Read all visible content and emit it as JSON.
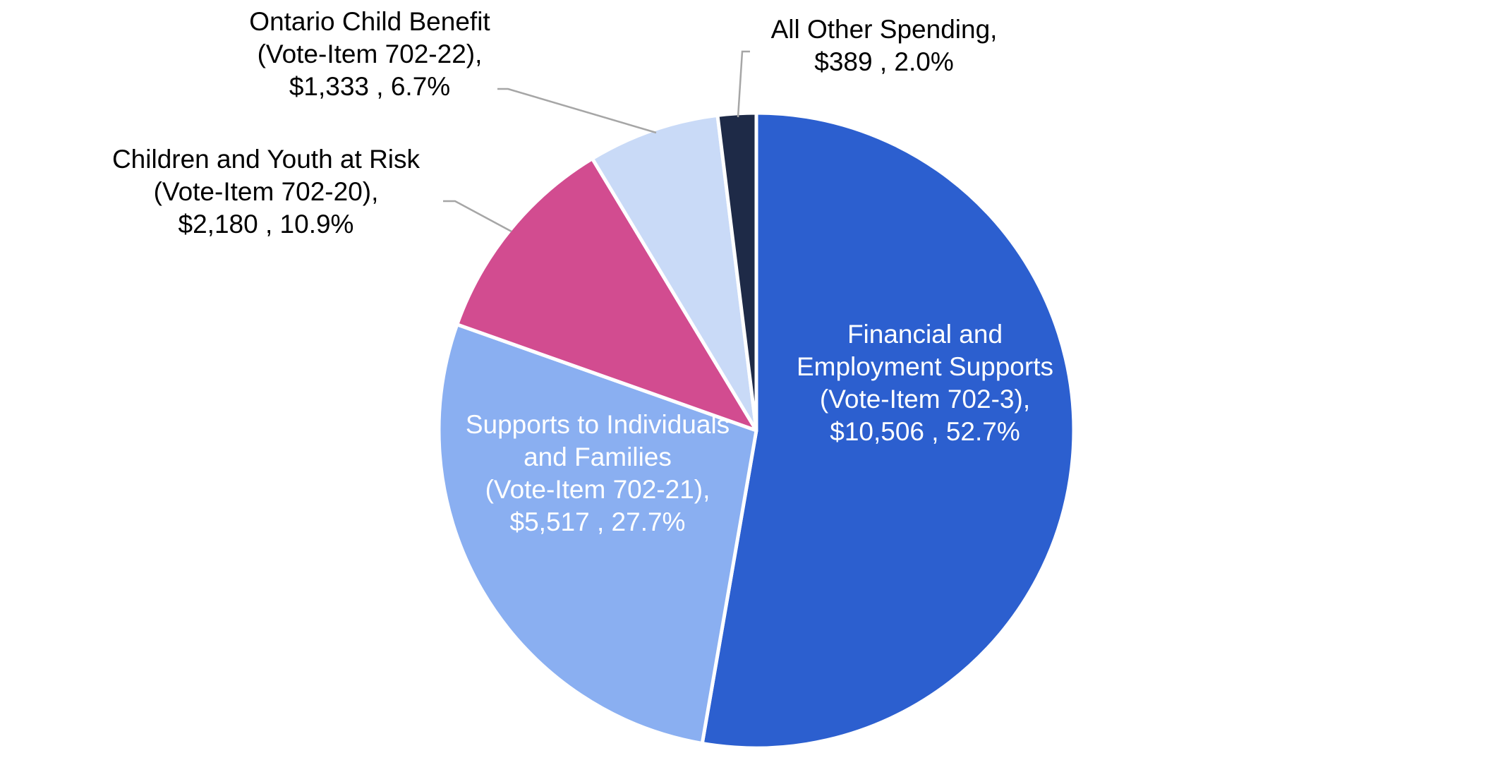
{
  "chart_data": {
    "type": "pie",
    "title": "",
    "start_angle_deg": 0,
    "direction": "clockwise",
    "slices": [
      {
        "key": "financial",
        "label_lines": [
          "Financial and",
          "Employment Supports",
          "(Vote-Item 702-3),",
          "$10,506 , 52.7%"
        ],
        "value": 10506,
        "percent": 52.7,
        "color": "#2C5FCF",
        "label_color": "#FFFFFF",
        "label_placement": "inside"
      },
      {
        "key": "individuals",
        "label_lines": [
          "Supports to Individuals",
          "and Families",
          "(Vote-Item 702-21),",
          "$5,517 , 27.7%"
        ],
        "value": 5517,
        "percent": 27.7,
        "color": "#8AAFF1",
        "label_color": "#FFFFFF",
        "label_placement": "inside"
      },
      {
        "key": "children",
        "label_lines": [
          "Children and Youth at Risk",
          "(Vote-Item 702-20),",
          "$2,180 , 10.9%"
        ],
        "value": 2180,
        "percent": 10.9,
        "color": "#D24C90",
        "label_color": "#000000",
        "label_placement": "outside"
      },
      {
        "key": "child-benefit",
        "label_lines": [
          "Ontario Child Benefit",
          "(Vote-Item 702-22),",
          "$1,333 , 6.7%"
        ],
        "value": 1333,
        "percent": 6.7,
        "color": "#C9DAF7",
        "label_color": "#000000",
        "label_placement": "outside"
      },
      {
        "key": "other",
        "label_lines": [
          "All Other Spending,",
          "$389 , 2.0%"
        ],
        "value": 389,
        "percent": 2.0,
        "color": "#1E2A47",
        "label_color": "#000000",
        "label_placement": "outside"
      }
    ],
    "legend": "none",
    "slice_border_color": "#FFFFFF",
    "leader_line_color": "#A6A6A6"
  }
}
